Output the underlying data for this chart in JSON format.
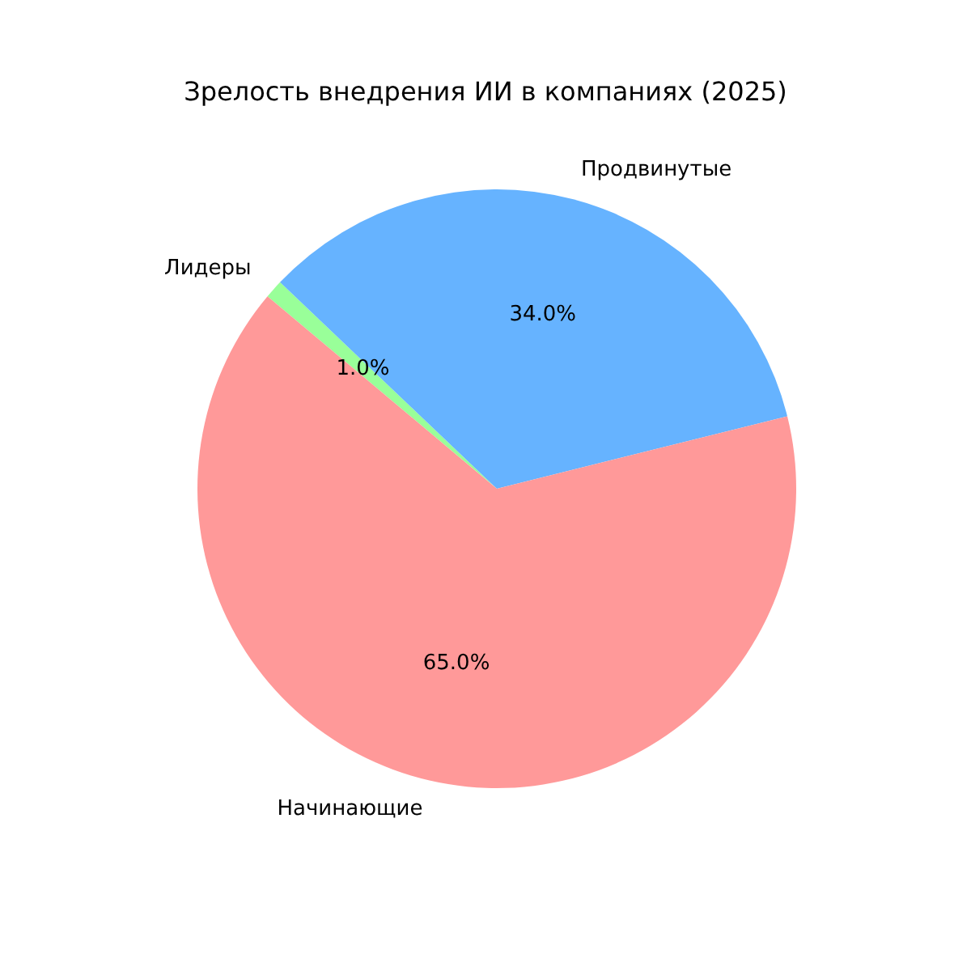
{
  "chart_data": {
    "type": "pie",
    "title": "Зрелость внедрения ИИ в компаниях (2025)",
    "categories": [
      "Начинающие",
      "Продвинутые",
      "Лидеры"
    ],
    "values": [
      65,
      34,
      1
    ],
    "colors": [
      "#ff9999",
      "#66b3ff",
      "#99ff99"
    ],
    "value_labels": [
      "65.0%",
      "34.0%",
      "1.0%"
    ],
    "legend": false
  }
}
